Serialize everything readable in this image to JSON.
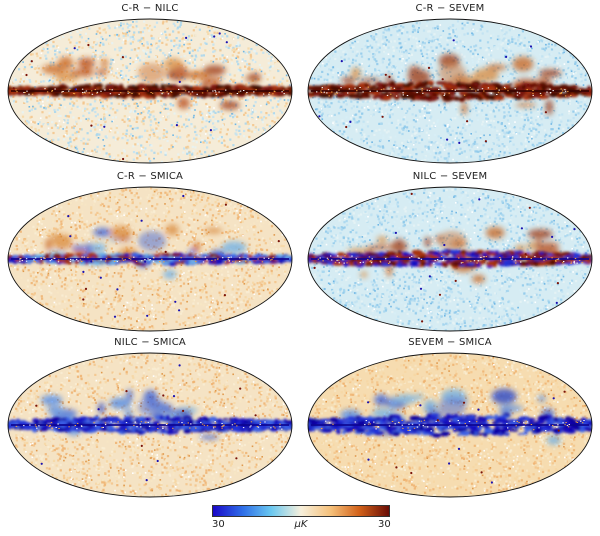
{
  "panels": [
    {
      "title": "C-R − NILC",
      "variant": "cr-nilc"
    },
    {
      "title": "C-R − SEVEM",
      "variant": "cr-sevem"
    },
    {
      "title": "C-R − SMICA",
      "variant": "cr-smica"
    },
    {
      "title": "NILC − SEVEM",
      "variant": "nilc-sevem"
    },
    {
      "title": "NILC − SMICA",
      "variant": "nilc-smica"
    },
    {
      "title": "SEVEM − SMICA",
      "variant": "sevem-smica"
    }
  ],
  "colorbar": {
    "min_label": "30",
    "max_label": "30",
    "unit": "μK",
    "colors": [
      "#1a08c8",
      "#2f6fe8",
      "#6ac8f0",
      "#f7f0dc",
      "#f5c07a",
      "#d2621a",
      "#6a0d06"
    ]
  }
}
